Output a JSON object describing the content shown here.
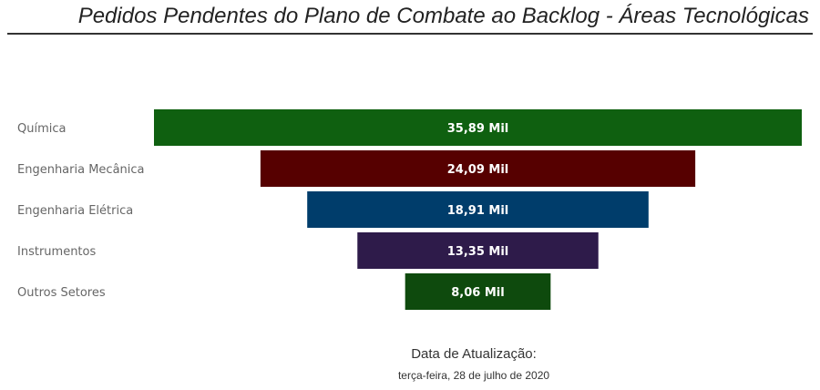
{
  "chart_data": {
    "type": "funnel",
    "title": "Pedidos Pendentes do Plano de Combate ao Backlog - Áreas Tecnológicas",
    "categories": [
      "Química",
      "Engenharia Mecânica",
      "Engenharia Elétrica",
      "Instrumentos",
      "Outros Setores"
    ],
    "values": [
      35.89,
      24.09,
      18.91,
      13.35,
      8.06
    ],
    "unit": "Mil",
    "data_labels": [
      "35,89 Mil",
      "24,09 Mil",
      "18,91 Mil",
      "13,35 Mil",
      "8,06 Mil"
    ],
    "colors": [
      "#0f6010",
      "#560000",
      "#003d6b",
      "#2e1b4a",
      "#0e4a0d"
    ]
  },
  "footer": {
    "label": "Data de Atualização:",
    "date": "terça-feira, 28 de julho de 2020"
  }
}
